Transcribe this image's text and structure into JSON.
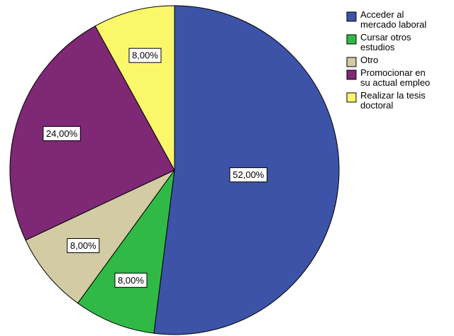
{
  "chart_data": {
    "type": "pie",
    "slices": [
      {
        "label": "Acceder al mercado laboral",
        "legend_lines": [
          "Acceder al",
          "mercado laboral"
        ],
        "value": 52,
        "value_label": "52,00%",
        "color": "#3c53a8"
      },
      {
        "label": "Cursar otros estudios",
        "legend_lines": [
          "Cursar otros",
          "estudios"
        ],
        "value": 8,
        "value_label": "8,00%",
        "color": "#31b946"
      },
      {
        "label": "Otro",
        "legend_lines": [
          "Otro"
        ],
        "value": 8,
        "value_label": "8,00%",
        "color": "#d2cba3"
      },
      {
        "label": "Promocionar en su actual empleo",
        "legend_lines": [
          "Promocionar en",
          "su actual empleo"
        ],
        "value": 24,
        "value_label": "24,00%",
        "color": "#7e2876"
      },
      {
        "label": "Realizar la tesis doctoral",
        "legend_lines": [
          "Realizar la tesis",
          "doctoral"
        ],
        "value": 8,
        "value_label": "8,00%",
        "color": "#fbf76a"
      }
    ],
    "start_angle_deg": 0,
    "direction": "clockwise",
    "legend_position": "top-right"
  }
}
